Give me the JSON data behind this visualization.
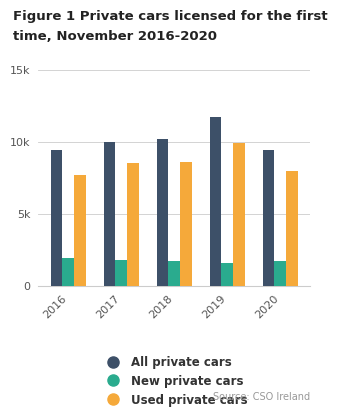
{
  "title_line1": "Figure 1 Private cars licensed for the first",
  "title_line2": "time, November 2016-2020",
  "years": [
    "2016",
    "2017",
    "2018",
    "2019",
    "2020"
  ],
  "all_cars": [
    9400,
    10000,
    10200,
    11700,
    9400
  ],
  "new_cars": [
    1900,
    1800,
    1700,
    1600,
    1700
  ],
  "used_cars": [
    7700,
    8500,
    8600,
    9900,
    8000
  ],
  "color_all": "#3d5068",
  "color_new": "#2aab8e",
  "color_used": "#f5a93a",
  "ylim": [
    0,
    15000
  ],
  "yticks": [
    0,
    5000,
    10000,
    15000
  ],
  "ytick_labels": [
    "0",
    "5k",
    "10k",
    "15k"
  ],
  "bar_width": 0.22,
  "source_text": "Source: CSO Ireland",
  "legend_labels": [
    "All private cars",
    "New private cars",
    "Used private cars"
  ],
  "background_color": "#ffffff",
  "title_fontsize": 9.5,
  "tick_fontsize": 8,
  "legend_fontsize": 8.5,
  "source_fontsize": 7
}
